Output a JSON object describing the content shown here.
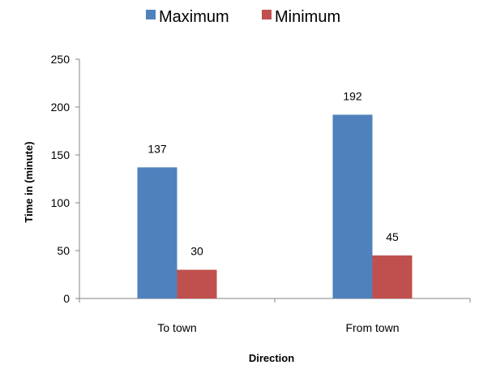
{
  "chart_data": {
    "type": "bar",
    "categories": [
      "To town",
      "From town"
    ],
    "series": [
      {
        "name": "Maximum",
        "values": [
          137,
          192
        ],
        "color": "#4F81BD"
      },
      {
        "name": "Minimum",
        "values": [
          30,
          45
        ],
        "color": "#C0504D"
      }
    ],
    "title": "",
    "xlabel": "Direction",
    "ylabel": "Time in (minute)",
    "ylim": [
      0,
      250
    ],
    "yticks": [
      0,
      50,
      100,
      150,
      200,
      250
    ],
    "grid": false,
    "legend_position": "top",
    "data_labels": true
  }
}
